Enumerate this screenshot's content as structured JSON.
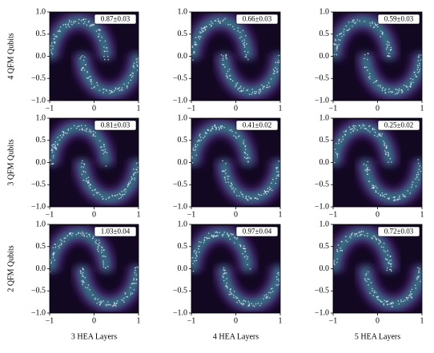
{
  "chart_data": [
    {
      "type": "heatmap",
      "annotation": "0.87±0.03",
      "xlim": [
        -1,
        1
      ],
      "ylim": [
        -1,
        1
      ],
      "xticks": [
        {
          "value": -1,
          "label": "−1"
        },
        0,
        1
      ],
      "yticks": [
        {
          "value": 1,
          "label": "1.0"
        },
        {
          "value": 0.5,
          "label": "0.5"
        },
        {
          "value": 0,
          "label": "0.0"
        },
        {
          "value": -0.5,
          "label": "−0.5"
        },
        {
          "value": -1,
          "label": "−1.0"
        }
      ]
    },
    {
      "type": "heatmap",
      "annotation": "0.66±0.03",
      "xlim": [
        -1,
        1
      ],
      "ylim": [
        -1,
        1
      ],
      "xticks": [
        {
          "value": -1,
          "label": "−1"
        },
        0,
        1
      ],
      "yticks": [
        {
          "value": 1,
          "label": "1.0"
        },
        {
          "value": 0.5,
          "label": "0.5"
        },
        {
          "value": 0,
          "label": "0.0"
        },
        {
          "value": -0.5,
          "label": "−0.5"
        },
        {
          "value": -1,
          "label": "−1.0"
        }
      ]
    },
    {
      "type": "heatmap",
      "annotation": "0.59±0.03",
      "xlim": [
        -1,
        1
      ],
      "ylim": [
        -1,
        1
      ],
      "xticks": [
        {
          "value": -1,
          "label": "−1"
        },
        0,
        1
      ],
      "yticks": [
        {
          "value": 1,
          "label": "1.0"
        },
        {
          "value": 0.5,
          "label": "0.5"
        },
        {
          "value": 0,
          "label": "0.0"
        },
        {
          "value": -0.5,
          "label": "−0.5"
        },
        {
          "value": -1,
          "label": "−1.0"
        }
      ]
    },
    {
      "type": "heatmap",
      "annotation": "0.81±0.03",
      "xlim": [
        -1,
        1
      ],
      "ylim": [
        -1,
        1
      ],
      "xticks": [
        {
          "value": -1,
          "label": "−1"
        },
        0,
        1
      ],
      "yticks": [
        {
          "value": 1,
          "label": "1.0"
        },
        {
          "value": 0.5,
          "label": "0.5"
        },
        {
          "value": 0,
          "label": "0.0"
        },
        {
          "value": -0.5,
          "label": "−0.5"
        },
        {
          "value": -1,
          "label": "−1.0"
        }
      ]
    },
    {
      "type": "heatmap",
      "annotation": "0.41±0.02",
      "xlim": [
        -1,
        1
      ],
      "ylim": [
        -1,
        1
      ],
      "xticks": [
        {
          "value": -1,
          "label": "−1"
        },
        0,
        1
      ],
      "yticks": [
        {
          "value": 1,
          "label": "1.0"
        },
        {
          "value": 0.5,
          "label": "0.5"
        },
        {
          "value": 0,
          "label": "0.0"
        },
        {
          "value": -0.5,
          "label": "−0.5"
        },
        {
          "value": -1,
          "label": "−1.0"
        }
      ]
    },
    {
      "type": "heatmap",
      "annotation": "0.25±0.02",
      "xlim": [
        -1,
        1
      ],
      "ylim": [
        -1,
        1
      ],
      "xticks": [
        {
          "value": -1,
          "label": "−1"
        },
        0,
        1
      ],
      "yticks": [
        {
          "value": 1,
          "label": "1.0"
        },
        {
          "value": 0.5,
          "label": "0.5"
        },
        {
          "value": 0,
          "label": "0.0"
        },
        {
          "value": -0.5,
          "label": "−0.5"
        },
        {
          "value": -1,
          "label": "−1.0"
        }
      ]
    },
    {
      "type": "heatmap",
      "annotation": "1.03±0.04",
      "xlim": [
        -1,
        1
      ],
      "ylim": [
        -1,
        1
      ],
      "xticks": [
        {
          "value": -1,
          "label": "−1"
        },
        0,
        1
      ],
      "yticks": [
        {
          "value": 1,
          "label": "1.0"
        },
        {
          "value": 0.5,
          "label": "0.5"
        },
        {
          "value": 0,
          "label": "0.0"
        },
        {
          "value": -0.5,
          "label": "−0.5"
        },
        {
          "value": -1,
          "label": "−1.0"
        }
      ]
    },
    {
      "type": "heatmap",
      "annotation": "0.97±0.04",
      "xlim": [
        -1,
        1
      ],
      "ylim": [
        -1,
        1
      ],
      "xticks": [
        {
          "value": -1,
          "label": "−1"
        },
        0,
        1
      ],
      "yticks": [
        {
          "value": 1,
          "label": "1.0"
        },
        {
          "value": 0.5,
          "label": "0.5"
        },
        {
          "value": 0,
          "label": "0.0"
        },
        {
          "value": -0.5,
          "label": "−0.5"
        },
        {
          "value": -1,
          "label": "−1.0"
        }
      ]
    },
    {
      "type": "heatmap",
      "annotation": "0.72±0.03",
      "xlim": [
        -1,
        1
      ],
      "ylim": [
        -1,
        1
      ],
      "xticks": [
        {
          "value": -1,
          "label": "−1"
        },
        0,
        1
      ],
      "yticks": [
        {
          "value": 1,
          "label": "1.0"
        },
        {
          "value": 0.5,
          "label": "0.5"
        },
        {
          "value": 0,
          "label": "0.0"
        },
        {
          "value": -0.5,
          "label": "−0.5"
        },
        {
          "value": -1,
          "label": "−1.0"
        }
      ]
    }
  ],
  "row_labels": [
    "4 QFM Qubits",
    "3 QFM Qubits",
    "2 QFM Qubits"
  ],
  "column_labels": [
    "3 HEA Layers",
    "4 HEA Layers",
    "5 HEA Layers"
  ]
}
